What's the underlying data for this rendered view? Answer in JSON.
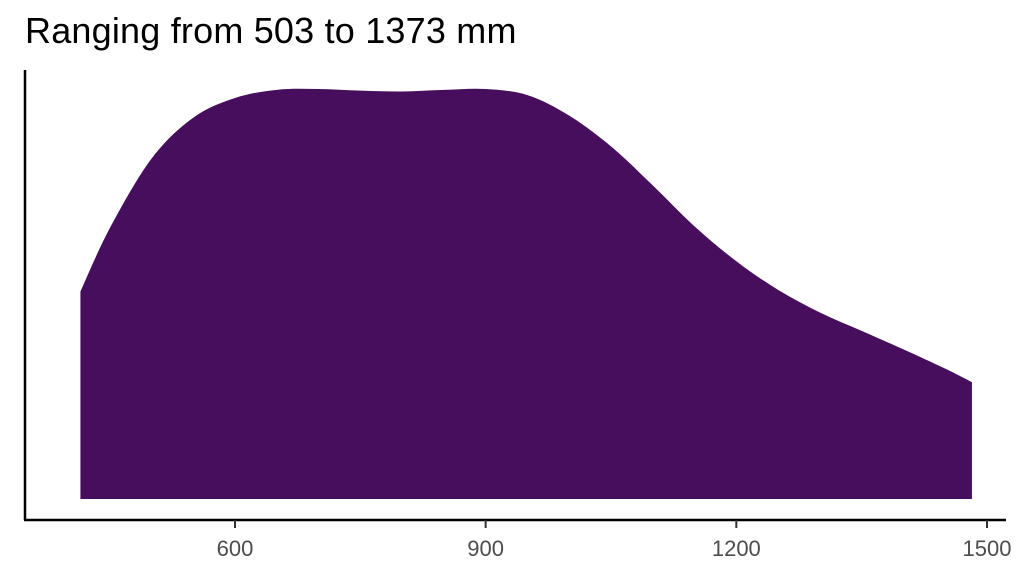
{
  "chart_data": {
    "type": "area",
    "title": "Ranging from 503 to 1373 mm",
    "xlabel": "",
    "ylabel": "",
    "xlim": [
      360,
      1510
    ],
    "xticks": [
      600,
      900,
      1200,
      1500
    ],
    "ylim": [
      0,
      1.05
    ],
    "grid": false,
    "legend": "none",
    "fill_color": "#480E5E",
    "series": [
      {
        "x": [
          415,
          450,
          500,
          550,
          600,
          650,
          700,
          750,
          800,
          850,
          900,
          950,
          1000,
          1050,
          1100,
          1150,
          1200,
          1250,
          1300,
          1350,
          1400,
          1450,
          1482
        ],
        "y": [
          0.506,
          0.66,
          0.83,
          0.93,
          0.978,
          0.998,
          1.0,
          0.996,
          0.994,
          0.998,
          1.0,
          0.985,
          0.935,
          0.86,
          0.765,
          0.665,
          0.58,
          0.51,
          0.455,
          0.41,
          0.365,
          0.318,
          0.285
        ]
      }
    ]
  }
}
